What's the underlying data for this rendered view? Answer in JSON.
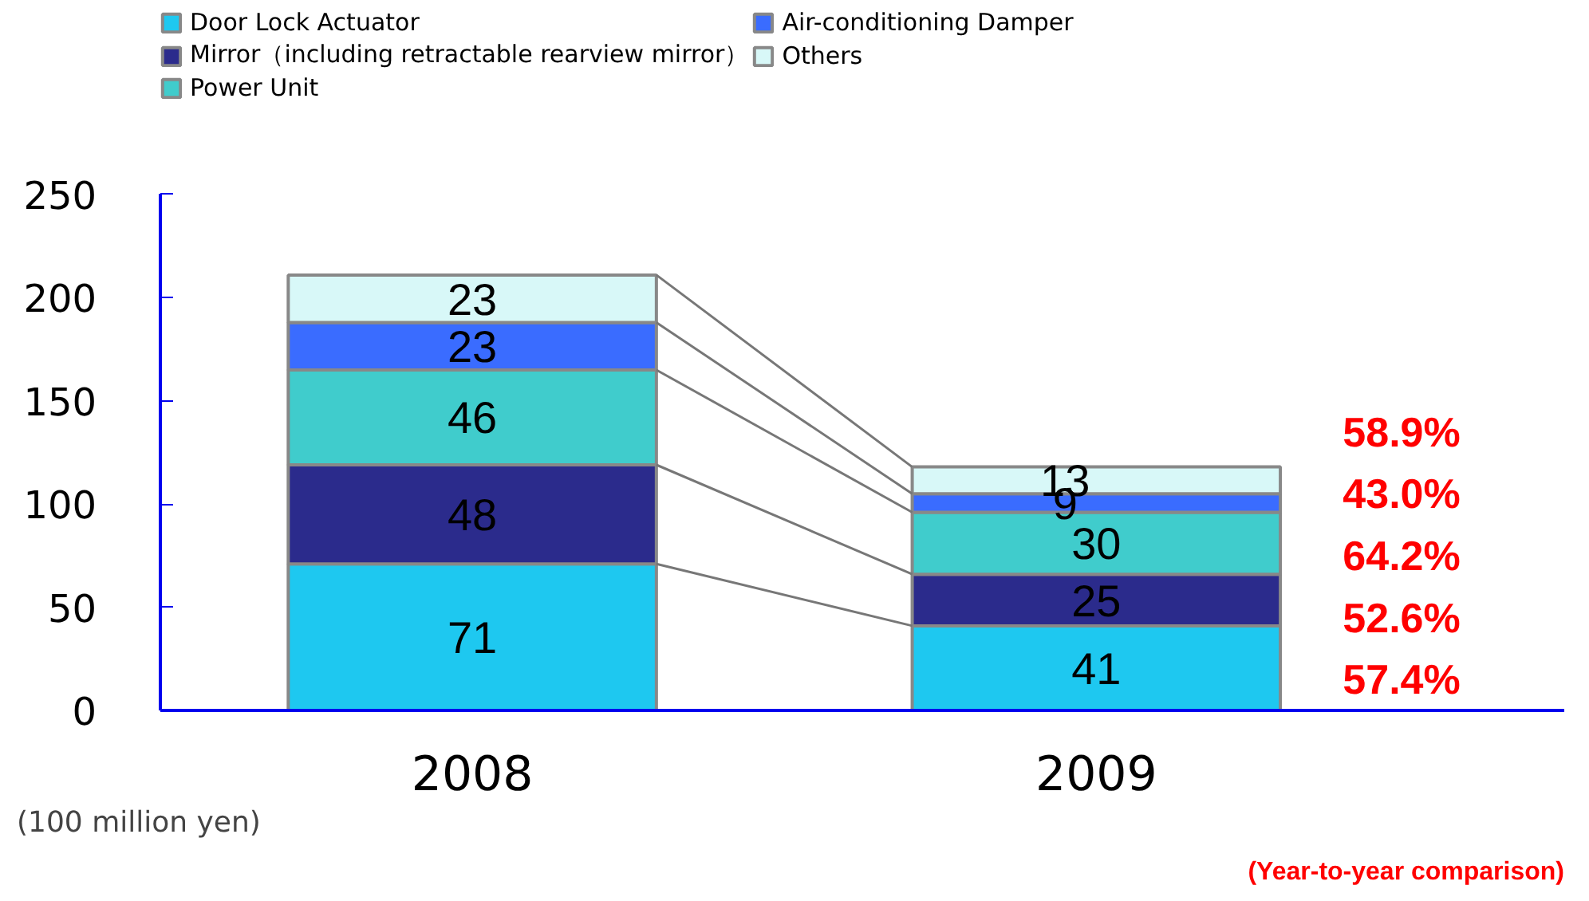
{
  "chart_data": {
    "type": "bar",
    "stacked": true,
    "categories": [
      "2008",
      "2009"
    ],
    "series": [
      {
        "name": "Door Lock Actuator",
        "color": "#1ec8f0",
        "values": [
          71,
          41
        ]
      },
      {
        "name": "Mirror（including retractable rearview mirror）",
        "color": "#2b2b8c",
        "values": [
          48,
          25
        ]
      },
      {
        "name": "Power Unit",
        "color": "#40cccc",
        "values": [
          46,
          30
        ]
      },
      {
        "name": "Air-conditioning Damper",
        "color": "#3a6cff",
        "values": [
          23,
          9
        ]
      },
      {
        "name": "Others",
        "color": "#d8f8f8",
        "values": [
          23,
          13
        ]
      }
    ],
    "ylim": [
      0,
      250
    ],
    "yticks": [
      0,
      50,
      100,
      150,
      200,
      250
    ],
    "data_labels": true,
    "legend": "top left",
    "grid": false,
    "annotations": [
      "(100 million yen)",
      "(Year-to-year comparison)",
      "57.4%",
      "52.6%",
      "64.2%",
      "43.0%",
      "58.9%"
    ]
  }
}
